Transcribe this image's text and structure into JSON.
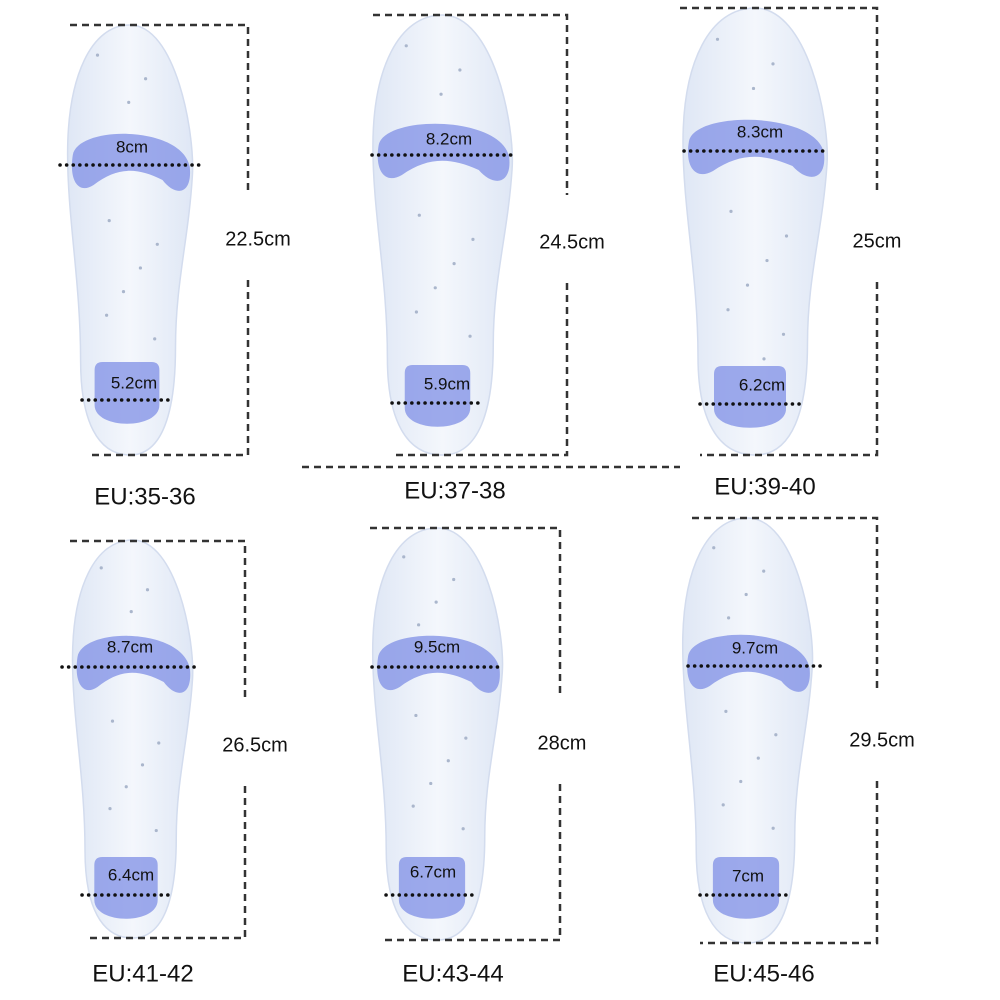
{
  "insoles": [
    {
      "size": "EU:35-36",
      "length": "22.5cm",
      "forefoot_width": "8cm",
      "heel_width": "5.2cm"
    },
    {
      "size": "EU:37-38",
      "length": "24.5cm",
      "forefoot_width": "8.2cm",
      "heel_width": "5.9cm"
    },
    {
      "size": "EU:39-40",
      "length": "25cm",
      "forefoot_width": "8.3cm",
      "heel_width": "6.2cm"
    },
    {
      "size": "EU:41-42",
      "length": "26.5cm",
      "forefoot_width": "8.7cm",
      "heel_width": "6.4cm"
    },
    {
      "size": "EU:43-44",
      "length": "28cm",
      "forefoot_width": "9.5cm",
      "heel_width": "6.7cm"
    },
    {
      "size": "EU:45-46",
      "length": "29.5cm",
      "forefoot_width": "9.7cm",
      "heel_width": "7cm"
    }
  ]
}
